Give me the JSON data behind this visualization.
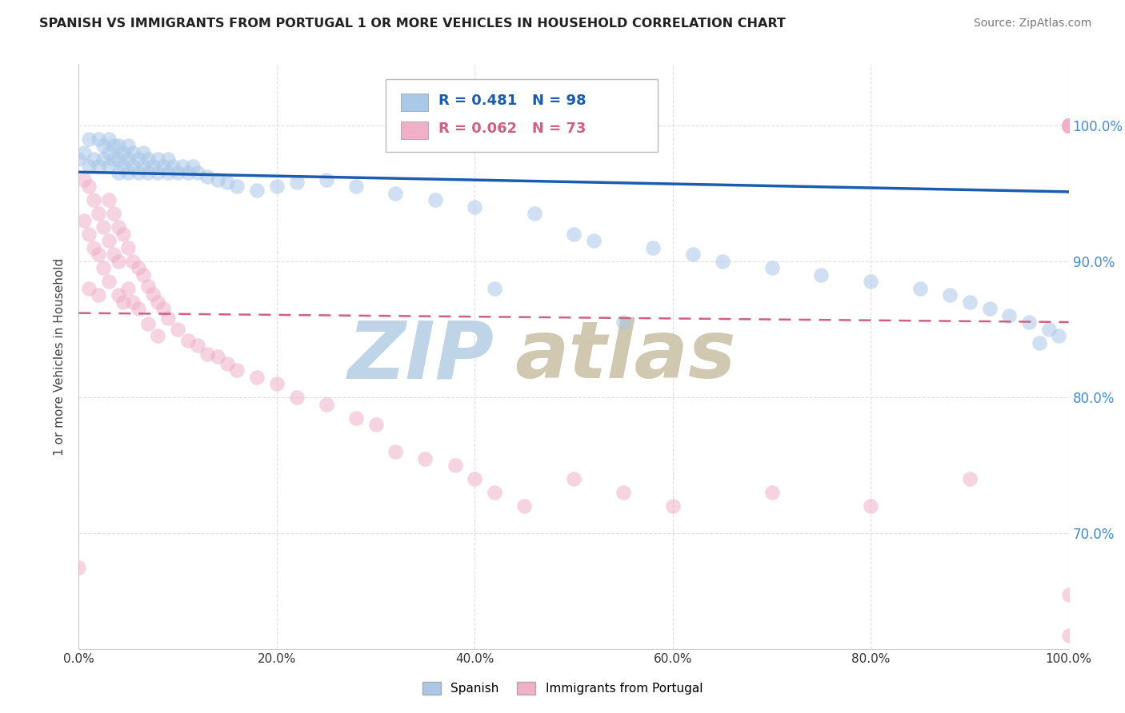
{
  "title": "SPANISH VS IMMIGRANTS FROM PORTUGAL 1 OR MORE VEHICLES IN HOUSEHOLD CORRELATION CHART",
  "source": "Source: ZipAtlas.com",
  "ylabel": "1 or more Vehicles in Household",
  "xmin": 0.0,
  "xmax": 1.0,
  "ymin": 0.615,
  "ymax": 1.045,
  "yticks": [
    0.7,
    0.8,
    0.9,
    1.0
  ],
  "ytick_labels": [
    "70.0%",
    "80.0%",
    "90.0%",
    "100.0%"
  ],
  "xtick_labels": [
    "0.0%",
    "20.0%",
    "40.0%",
    "60.0%",
    "80.0%",
    "100.0%"
  ],
  "xticks": [
    0.0,
    0.2,
    0.4,
    0.6,
    0.8,
    1.0
  ],
  "blue_R": 0.481,
  "blue_N": 98,
  "pink_R": 0.062,
  "pink_N": 73,
  "blue_color": "#aac8e8",
  "pink_color": "#f0b0c8",
  "blue_line_color": "#1a5cb0",
  "pink_line_color": "#d06080",
  "watermark_zip_color": "#c0d4e8",
  "watermark_atlas_color": "#d0c8b0",
  "background_color": "#ffffff",
  "grid_color": "#d8d8d8",
  "blue_scatter_x": [
    0.0,
    0.005,
    0.01,
    0.01,
    0.015,
    0.02,
    0.02,
    0.025,
    0.025,
    0.03,
    0.03,
    0.03,
    0.035,
    0.035,
    0.04,
    0.04,
    0.04,
    0.045,
    0.045,
    0.05,
    0.05,
    0.05,
    0.055,
    0.055,
    0.06,
    0.06,
    0.065,
    0.065,
    0.07,
    0.07,
    0.075,
    0.08,
    0.08,
    0.085,
    0.09,
    0.09,
    0.095,
    0.1,
    0.105,
    0.11,
    0.115,
    0.12,
    0.13,
    0.14,
    0.15,
    0.16,
    0.18,
    0.2,
    0.22,
    0.25,
    0.28,
    0.32,
    0.36,
    0.4,
    0.42,
    0.46,
    0.5,
    0.52,
    0.55,
    0.58,
    0.62,
    0.65,
    0.7,
    0.75,
    0.8,
    0.85,
    0.88,
    0.9,
    0.92,
    0.94,
    0.96,
    0.97,
    0.98,
    0.99,
    1.0,
    1.0,
    1.0,
    1.0,
    1.0,
    1.0,
    1.0,
    1.0,
    1.0,
    1.0,
    1.0,
    1.0,
    1.0,
    1.0,
    1.0,
    1.0,
    1.0,
    1.0,
    1.0,
    1.0,
    1.0,
    1.0,
    1.0,
    1.0
  ],
  "blue_scatter_y": [
    0.975,
    0.98,
    0.97,
    0.99,
    0.975,
    0.97,
    0.99,
    0.975,
    0.985,
    0.97,
    0.98,
    0.99,
    0.975,
    0.985,
    0.965,
    0.975,
    0.985,
    0.97,
    0.98,
    0.965,
    0.975,
    0.985,
    0.97,
    0.98,
    0.965,
    0.975,
    0.97,
    0.98,
    0.965,
    0.975,
    0.97,
    0.965,
    0.975,
    0.97,
    0.965,
    0.975,
    0.97,
    0.965,
    0.97,
    0.965,
    0.97,
    0.965,
    0.962,
    0.96,
    0.958,
    0.955,
    0.952,
    0.955,
    0.958,
    0.96,
    0.955,
    0.95,
    0.945,
    0.94,
    0.88,
    0.935,
    0.92,
    0.915,
    0.855,
    0.91,
    0.905,
    0.9,
    0.895,
    0.89,
    0.885,
    0.88,
    0.875,
    0.87,
    0.865,
    0.86,
    0.855,
    0.84,
    0.85,
    0.845,
    1.0,
    1.0,
    1.0,
    1.0,
    1.0,
    1.0,
    1.0,
    1.0,
    1.0,
    1.0,
    1.0,
    1.0,
    1.0,
    1.0,
    1.0,
    1.0,
    1.0,
    1.0,
    1.0,
    1.0,
    1.0,
    1.0,
    1.0,
    1.0
  ],
  "pink_scatter_x": [
    0.0,
    0.005,
    0.005,
    0.01,
    0.01,
    0.01,
    0.015,
    0.015,
    0.02,
    0.02,
    0.02,
    0.025,
    0.025,
    0.03,
    0.03,
    0.03,
    0.035,
    0.035,
    0.04,
    0.04,
    0.04,
    0.045,
    0.045,
    0.05,
    0.05,
    0.055,
    0.055,
    0.06,
    0.06,
    0.065,
    0.07,
    0.07,
    0.075,
    0.08,
    0.08,
    0.085,
    0.09,
    0.1,
    0.11,
    0.12,
    0.13,
    0.14,
    0.15,
    0.16,
    0.18,
    0.2,
    0.22,
    0.25,
    0.28,
    0.3,
    0.32,
    0.35,
    0.38,
    0.4,
    0.42,
    0.45,
    0.5,
    0.55,
    0.6,
    0.7,
    0.8,
    0.9,
    1.0,
    1.0,
    1.0,
    1.0,
    1.0,
    1.0,
    1.0,
    1.0,
    1.0,
    1.0,
    1.0
  ],
  "pink_scatter_y": [
    0.675,
    0.96,
    0.93,
    0.955,
    0.92,
    0.88,
    0.945,
    0.91,
    0.935,
    0.905,
    0.875,
    0.925,
    0.895,
    0.945,
    0.915,
    0.885,
    0.935,
    0.905,
    0.875,
    0.925,
    0.9,
    0.87,
    0.92,
    0.91,
    0.88,
    0.9,
    0.87,
    0.895,
    0.865,
    0.89,
    0.882,
    0.854,
    0.876,
    0.87,
    0.845,
    0.865,
    0.858,
    0.85,
    0.842,
    0.838,
    0.832,
    0.83,
    0.825,
    0.82,
    0.815,
    0.81,
    0.8,
    0.795,
    0.785,
    0.78,
    0.76,
    0.755,
    0.75,
    0.74,
    0.73,
    0.72,
    0.74,
    0.73,
    0.72,
    0.73,
    0.72,
    0.74,
    1.0,
    1.0,
    1.0,
    1.0,
    1.0,
    1.0,
    1.0,
    1.0,
    1.0,
    0.655,
    0.625
  ]
}
